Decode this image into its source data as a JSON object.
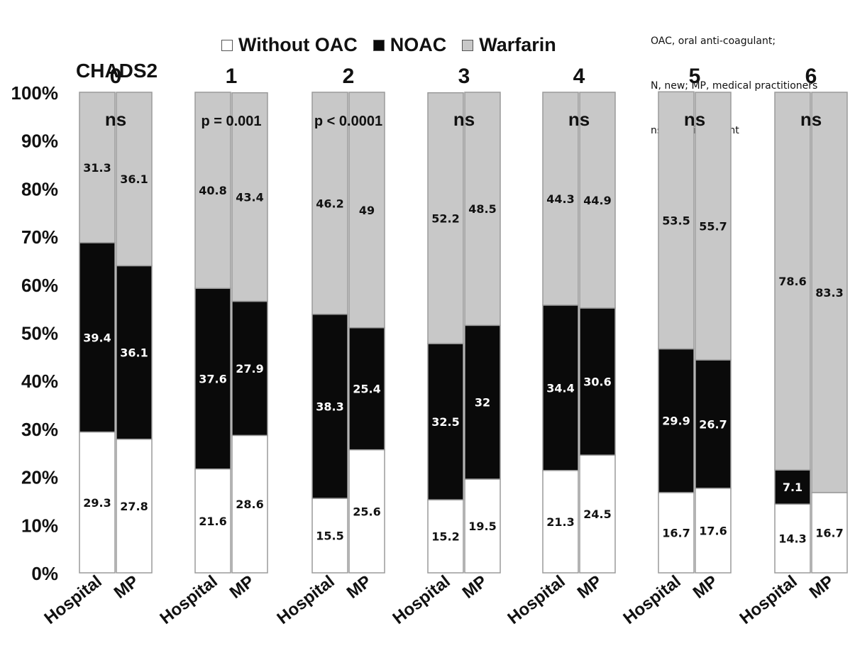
{
  "notes": [
    "OAC, oral anti-coagulant;",
    "N, new; MP, medical practitioners",
    "ns, not significant"
  ],
  "chart_data": {
    "type": "bar",
    "stacked": true,
    "y_axis": {
      "ylim": [
        0,
        100
      ],
      "ticks": [
        "0%",
        "10%",
        "20%",
        "30%",
        "40%",
        "50%",
        "60%",
        "70%",
        "80%",
        "90%",
        "100%"
      ]
    },
    "score_title": "CHADS2",
    "legend": [
      {
        "name": "Without OAC",
        "color": "#ffffff"
      },
      {
        "name": "NOAC",
        "color": "#0a0a0a"
      },
      {
        "name": "Warfarin",
        "color": "#c8c8c8"
      }
    ],
    "groups": [
      {
        "score": "0",
        "significance": "ns",
        "bars": [
          {
            "label": "Hospital",
            "values": [
              29.3,
              39.4,
              31.3
            ]
          },
          {
            "label": "MP",
            "values": [
              27.8,
              36.1,
              36.1
            ]
          }
        ]
      },
      {
        "score": "1",
        "significance": "p = 0.001",
        "bars": [
          {
            "label": "Hospital",
            "values": [
              21.6,
              37.6,
              40.8
            ]
          },
          {
            "label": "MP",
            "values": [
              28.6,
              27.9,
              43.4
            ]
          }
        ]
      },
      {
        "score": "2",
        "significance": "p < 0.0001",
        "bars": [
          {
            "label": "Hospital",
            "values": [
              15.5,
              38.3,
              46.2
            ]
          },
          {
            "label": "MP",
            "values": [
              25.6,
              25.4,
              49
            ]
          }
        ]
      },
      {
        "score": "3",
        "significance": "ns",
        "bars": [
          {
            "label": "Hospital",
            "values": [
              15.2,
              32.5,
              52.2
            ]
          },
          {
            "label": "MP",
            "values": [
              19.5,
              32,
              48.5
            ]
          }
        ]
      },
      {
        "score": "4",
        "significance": "ns",
        "bars": [
          {
            "label": "Hospital",
            "values": [
              21.3,
              34.4,
              44.3
            ]
          },
          {
            "label": "MP",
            "values": [
              24.5,
              30.6,
              44.9
            ]
          }
        ]
      },
      {
        "score": "5",
        "significance": "ns",
        "bars": [
          {
            "label": "Hospital",
            "values": [
              16.7,
              29.9,
              53.5
            ]
          },
          {
            "label": "MP",
            "values": [
              17.6,
              26.7,
              55.7
            ]
          }
        ]
      },
      {
        "score": "6",
        "significance": "ns",
        "bars": [
          {
            "label": "Hospital",
            "values": [
              14.3,
              7.1,
              78.6
            ]
          },
          {
            "label": "MP",
            "values": [
              16.7,
              0,
              83.3
            ]
          }
        ]
      }
    ]
  }
}
